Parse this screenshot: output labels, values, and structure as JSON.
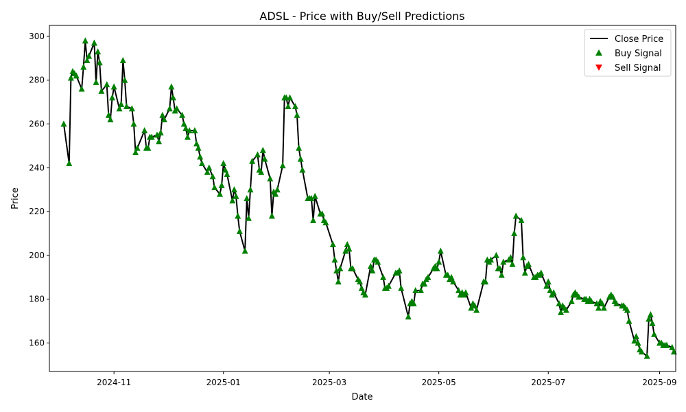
{
  "chart_data": {
    "type": "line",
    "title": "ADSL - Price with Buy/Sell Predictions",
    "xlabel": "Date",
    "ylabel": "Price",
    "xlim": [
      "2024-09-26",
      "2025-09-10"
    ],
    "ylim": [
      147,
      305
    ],
    "x_ticks": [
      {
        "date": "2024-11-01",
        "label": "2024-11"
      },
      {
        "date": "2025-01-01",
        "label": "2025-01"
      },
      {
        "date": "2025-03-01",
        "label": "2025-03"
      },
      {
        "date": "2025-05-01",
        "label": "2025-05"
      },
      {
        "date": "2025-07-01",
        "label": "2025-07"
      },
      {
        "date": "2025-09-01",
        "label": "2025-09"
      }
    ],
    "y_ticks": [
      160,
      180,
      200,
      220,
      240,
      260,
      280,
      300
    ],
    "grid": false,
    "legend": {
      "placement": "top-right",
      "entries": [
        {
          "label": "Close Price",
          "kind": "line",
          "color": "#000000"
        },
        {
          "label": "Buy Signal",
          "kind": "triangle-up",
          "color": "#008000"
        },
        {
          "label": "Sell Signal",
          "kind": "triangle-down",
          "color": "#ff0000"
        }
      ]
    },
    "series": [
      {
        "name": "Close Price",
        "color": "#000000",
        "points": [
          [
            "2024-10-04",
            260
          ],
          [
            "2024-10-07",
            242
          ],
          [
            "2024-10-08",
            281
          ],
          [
            "2024-10-09",
            284
          ],
          [
            "2024-10-10",
            283
          ],
          [
            "2024-10-11",
            282
          ],
          [
            "2024-10-14",
            276
          ],
          [
            "2024-10-15",
            286
          ],
          [
            "2024-10-16",
            298
          ],
          [
            "2024-10-17",
            289
          ],
          [
            "2024-10-18",
            291
          ],
          [
            "2024-10-21",
            297
          ],
          [
            "2024-10-22",
            279
          ],
          [
            "2024-10-23",
            293
          ],
          [
            "2024-10-24",
            288
          ],
          [
            "2024-10-25",
            275
          ],
          [
            "2024-10-28",
            278
          ],
          [
            "2024-10-29",
            264
          ],
          [
            "2024-10-30",
            262
          ],
          [
            "2024-10-31",
            272
          ],
          [
            "2024-11-01",
            277
          ],
          [
            "2024-11-04",
            267
          ],
          [
            "2024-11-05",
            269
          ],
          [
            "2024-11-06",
            289
          ],
          [
            "2024-11-07",
            280
          ],
          [
            "2024-11-08",
            268
          ],
          [
            "2024-11-11",
            267
          ],
          [
            "2024-11-12",
            260
          ],
          [
            "2024-11-13",
            247
          ],
          [
            "2024-11-14",
            249
          ],
          [
            "2024-11-18",
            257
          ],
          [
            "2024-11-19",
            249
          ],
          [
            "2024-11-20",
            249
          ],
          [
            "2024-11-21",
            254
          ],
          [
            "2024-11-22",
            254
          ],
          [
            "2024-11-25",
            255
          ],
          [
            "2024-11-26",
            252
          ],
          [
            "2024-11-27",
            256
          ],
          [
            "2024-11-28",
            264
          ],
          [
            "2024-11-29",
            262
          ],
          [
            "2024-12-02",
            267
          ],
          [
            "2024-12-03",
            277
          ],
          [
            "2024-12-04",
            272
          ],
          [
            "2024-12-05",
            266
          ],
          [
            "2024-12-06",
            267
          ],
          [
            "2024-12-09",
            264
          ],
          [
            "2024-12-10",
            260
          ],
          [
            "2024-12-11",
            258
          ],
          [
            "2024-12-12",
            254
          ],
          [
            "2024-12-13",
            257
          ],
          [
            "2024-12-16",
            257
          ],
          [
            "2024-12-17",
            251
          ],
          [
            "2024-12-18",
            249
          ],
          [
            "2024-12-19",
            245
          ],
          [
            "2024-12-20",
            242
          ],
          [
            "2024-12-23",
            238
          ],
          [
            "2024-12-24",
            240
          ],
          [
            "2024-12-26",
            236
          ],
          [
            "2024-12-27",
            231
          ],
          [
            "2024-12-30",
            228
          ],
          [
            "2024-12-31",
            232
          ],
          [
            "2025-01-01",
            242
          ],
          [
            "2025-01-02",
            239
          ],
          [
            "2025-01-03",
            237
          ],
          [
            "2025-01-06",
            225
          ],
          [
            "2025-01-07",
            230
          ],
          [
            "2025-01-08",
            227
          ],
          [
            "2025-01-09",
            218
          ],
          [
            "2025-01-10",
            211
          ],
          [
            "2025-01-13",
            202
          ],
          [
            "2025-01-14",
            226
          ],
          [
            "2025-01-15",
            217
          ],
          [
            "2025-01-16",
            230
          ],
          [
            "2025-01-17",
            243
          ],
          [
            "2025-01-20",
            246
          ],
          [
            "2025-01-21",
            239
          ],
          [
            "2025-01-22",
            238
          ],
          [
            "2025-01-23",
            248
          ],
          [
            "2025-01-24",
            244
          ],
          [
            "2025-01-27",
            235
          ],
          [
            "2025-01-28",
            218
          ],
          [
            "2025-01-29",
            229
          ],
          [
            "2025-01-30",
            228
          ],
          [
            "2025-01-31",
            230
          ],
          [
            "2025-02-03",
            241
          ],
          [
            "2025-02-04",
            272
          ],
          [
            "2025-02-05",
            272
          ],
          [
            "2025-02-06",
            268
          ],
          [
            "2025-02-07",
            272
          ],
          [
            "2025-02-10",
            268
          ],
          [
            "2025-02-11",
            264
          ],
          [
            "2025-02-12",
            249
          ],
          [
            "2025-02-13",
            244
          ],
          [
            "2025-02-14",
            239
          ],
          [
            "2025-02-17",
            226
          ],
          [
            "2025-02-18",
            226
          ],
          [
            "2025-02-19",
            226
          ],
          [
            "2025-02-20",
            216
          ],
          [
            "2025-02-21",
            227
          ],
          [
            "2025-02-24",
            219
          ],
          [
            "2025-02-25",
            219
          ],
          [
            "2025-02-26",
            216
          ],
          [
            "2025-02-27",
            215
          ],
          [
            "2025-03-03",
            205
          ],
          [
            "2025-03-04",
            198
          ],
          [
            "2025-03-05",
            193
          ],
          [
            "2025-03-06",
            188
          ],
          [
            "2025-03-07",
            194
          ],
          [
            "2025-03-10",
            202
          ],
          [
            "2025-03-11",
            205
          ],
          [
            "2025-03-12",
            203
          ],
          [
            "2025-03-13",
            194
          ],
          [
            "2025-03-14",
            194
          ],
          [
            "2025-03-17",
            189
          ],
          [
            "2025-03-18",
            188
          ],
          [
            "2025-03-19",
            185
          ],
          [
            "2025-03-20",
            183
          ],
          [
            "2025-03-21",
            182
          ],
          [
            "2025-03-24",
            195
          ],
          [
            "2025-03-25",
            193
          ],
          [
            "2025-03-26",
            198
          ],
          [
            "2025-03-27",
            198
          ],
          [
            "2025-03-28",
            197
          ],
          [
            "2025-03-31",
            190
          ],
          [
            "2025-04-01",
            185
          ],
          [
            "2025-04-02",
            185
          ],
          [
            "2025-04-03",
            186
          ],
          [
            "2025-04-07",
            192
          ],
          [
            "2025-04-08",
            192
          ],
          [
            "2025-04-09",
            193
          ],
          [
            "2025-04-10",
            185
          ],
          [
            "2025-04-14",
            172
          ],
          [
            "2025-04-15",
            178
          ],
          [
            "2025-04-16",
            179
          ],
          [
            "2025-04-17",
            178
          ],
          [
            "2025-04-18",
            184
          ],
          [
            "2025-04-21",
            184
          ],
          [
            "2025-04-22",
            187
          ],
          [
            "2025-04-23",
            187
          ],
          [
            "2025-04-24",
            189
          ],
          [
            "2025-04-25",
            190
          ],
          [
            "2025-04-28",
            194
          ],
          [
            "2025-04-29",
            195
          ],
          [
            "2025-04-30",
            194
          ],
          [
            "2025-05-01",
            197
          ],
          [
            "2025-05-02",
            202
          ],
          [
            "2025-05-05",
            191
          ],
          [
            "2025-05-06",
            191
          ],
          [
            "2025-05-07",
            189
          ],
          [
            "2025-05-08",
            190
          ],
          [
            "2025-05-09",
            188
          ],
          [
            "2025-05-12",
            184
          ],
          [
            "2025-05-13",
            182
          ],
          [
            "2025-05-14",
            183
          ],
          [
            "2025-05-15",
            182
          ],
          [
            "2025-05-16",
            183
          ],
          [
            "2025-05-19",
            176
          ],
          [
            "2025-05-20",
            178
          ],
          [
            "2025-05-21",
            177
          ],
          [
            "2025-05-22",
            175
          ],
          [
            "2025-05-26",
            188
          ],
          [
            "2025-05-27",
            188
          ],
          [
            "2025-05-28",
            198
          ],
          [
            "2025-05-29",
            197
          ],
          [
            "2025-05-30",
            198
          ],
          [
            "2025-06-02",
            200
          ],
          [
            "2025-06-03",
            194
          ],
          [
            "2025-06-04",
            194
          ],
          [
            "2025-06-05",
            191
          ],
          [
            "2025-06-06",
            197
          ],
          [
            "2025-06-09",
            198
          ],
          [
            "2025-06-10",
            199
          ],
          [
            "2025-06-11",
            196
          ],
          [
            "2025-06-12",
            210
          ],
          [
            "2025-06-13",
            218
          ],
          [
            "2025-06-16",
            216
          ],
          [
            "2025-06-17",
            199
          ],
          [
            "2025-06-18",
            192
          ],
          [
            "2025-06-19",
            195
          ],
          [
            "2025-06-20",
            196
          ],
          [
            "2025-06-23",
            190
          ],
          [
            "2025-06-24",
            190
          ],
          [
            "2025-06-25",
            191
          ],
          [
            "2025-06-26",
            191
          ],
          [
            "2025-06-27",
            192
          ],
          [
            "2025-06-30",
            186
          ],
          [
            "2025-07-01",
            188
          ],
          [
            "2025-07-02",
            184
          ],
          [
            "2025-07-03",
            182
          ],
          [
            "2025-07-04",
            183
          ],
          [
            "2025-07-07",
            178
          ],
          [
            "2025-07-08",
            174
          ],
          [
            "2025-07-09",
            177
          ],
          [
            "2025-07-10",
            176
          ],
          [
            "2025-07-11",
            175
          ],
          [
            "2025-07-14",
            179
          ],
          [
            "2025-07-15",
            182
          ],
          [
            "2025-07-16",
            183
          ],
          [
            "2025-07-17",
            182
          ],
          [
            "2025-07-18",
            181
          ],
          [
            "2025-07-21",
            180
          ],
          [
            "2025-07-22",
            180
          ],
          [
            "2025-07-23",
            179
          ],
          [
            "2025-07-24",
            180
          ],
          [
            "2025-07-25",
            179
          ],
          [
            "2025-07-28",
            178
          ],
          [
            "2025-07-29",
            176
          ],
          [
            "2025-07-30",
            179
          ],
          [
            "2025-07-31",
            178
          ],
          [
            "2025-08-01",
            176
          ],
          [
            "2025-08-04",
            181
          ],
          [
            "2025-08-05",
            182
          ],
          [
            "2025-08-06",
            181
          ],
          [
            "2025-08-07",
            179
          ],
          [
            "2025-08-08",
            178
          ],
          [
            "2025-08-11",
            177
          ],
          [
            "2025-08-12",
            177
          ],
          [
            "2025-08-13",
            176
          ],
          [
            "2025-08-14",
            175
          ],
          [
            "2025-08-15",
            170
          ],
          [
            "2025-08-18",
            161
          ],
          [
            "2025-08-19",
            163
          ],
          [
            "2025-08-20",
            160
          ],
          [
            "2025-08-21",
            157
          ],
          [
            "2025-08-22",
            156
          ],
          [
            "2025-08-25",
            154
          ],
          [
            "2025-08-26",
            171
          ],
          [
            "2025-08-27",
            173
          ],
          [
            "2025-08-28",
            169
          ],
          [
            "2025-08-29",
            164
          ],
          [
            "2025-09-01",
            160
          ],
          [
            "2025-09-02",
            160
          ],
          [
            "2025-09-03",
            159
          ],
          [
            "2025-09-04",
            159
          ],
          [
            "2025-09-05",
            159
          ],
          [
            "2025-09-08",
            158
          ],
          [
            "2025-09-09",
            156
          ]
        ]
      }
    ],
    "buy_signals": "all Close Price points",
    "sell_signals": []
  }
}
